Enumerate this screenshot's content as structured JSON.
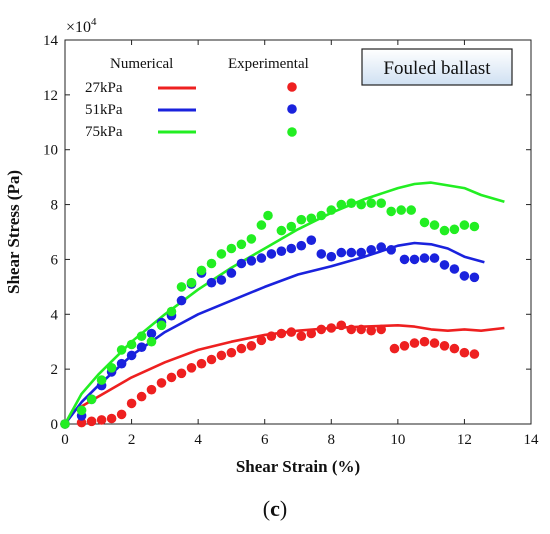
{
  "chart_data": {
    "type": "scatter",
    "xlabel": "Shear Strain (%)",
    "ylabel": "Shear Stress (Pa)",
    "y_multiplier_label": "×10",
    "y_multiplier_exp": "4",
    "xlim": [
      0,
      14
    ],
    "ylim": [
      0,
      140000
    ],
    "x_ticks": [
      "0",
      "2",
      "4",
      "6",
      "8",
      "10",
      "12",
      "14"
    ],
    "y_ticks": [
      "0",
      "2",
      "4",
      "6",
      "8",
      "10",
      "12",
      "14"
    ],
    "grid": false,
    "legend": {
      "placement": "top-left",
      "numerical_header": "Numerical",
      "experimental_header": "Experimental",
      "entries": [
        "27kPa",
        "51kPa",
        "75kPa"
      ]
    },
    "annotation": "Fouled ballast",
    "colors": {
      "27kPa": "#ee2020",
      "51kPa": "#1a22dd",
      "75kPa": "#22ee22"
    },
    "series": [
      {
        "name": "27kPa",
        "numerical": {
          "x": [
            0,
            0.3,
            1,
            2,
            3,
            4,
            5,
            6,
            7,
            8,
            9,
            10,
            10.5,
            11,
            11.5,
            12,
            12.5,
            13.2
          ],
          "y": [
            0,
            5000,
            10000,
            17000,
            22500,
            27000,
            30000,
            32500,
            34000,
            35000,
            35500,
            36000,
            35500,
            34500,
            34000,
            34500,
            34000,
            35000
          ]
        },
        "experimental": {
          "x": [
            0,
            0.5,
            0.8,
            1.1,
            1.4,
            1.7,
            2,
            2.3,
            2.6,
            2.9,
            3.2,
            3.5,
            3.8,
            4.1,
            4.4,
            4.7,
            5,
            5.3,
            5.6,
            5.9,
            6.2,
            6.5,
            6.8,
            7.1,
            7.4,
            7.7,
            8,
            8.3,
            8.6,
            8.9,
            9.2,
            9.5,
            9.9,
            10.2,
            10.5,
            10.8,
            11.1,
            11.4,
            11.7,
            12,
            12.3
          ],
          "y": [
            0,
            500,
            1000,
            1500,
            2000,
            3500,
            7500,
            10000,
            12500,
            15000,
            17000,
            18500,
            20500,
            22000,
            23500,
            25000,
            26000,
            27500,
            28500,
            30500,
            32000,
            33000,
            33500,
            32000,
            33000,
            34500,
            35000,
            36000,
            34500,
            34500,
            34000,
            34500,
            27500,
            28500,
            29500,
            30000,
            29500,
            28500,
            27500,
            26000,
            25500
          ]
        }
      },
      {
        "name": "51kPa",
        "numerical": {
          "x": [
            0,
            0.5,
            1,
            2,
            3,
            4,
            5,
            6,
            7,
            8,
            9,
            10,
            10.5,
            11,
            11.5,
            12,
            12.6
          ],
          "y": [
            0,
            8000,
            14000,
            25000,
            33500,
            40000,
            45000,
            50000,
            54500,
            57500,
            61000,
            65000,
            66000,
            65500,
            64000,
            61000,
            59000
          ]
        },
        "experimental": {
          "x": [
            0,
            0.5,
            0.8,
            1.1,
            1.4,
            1.7,
            2,
            2.3,
            2.6,
            2.9,
            3.2,
            3.5,
            3.8,
            4.1,
            4.4,
            4.7,
            5,
            5.3,
            5.6,
            5.9,
            6.2,
            6.5,
            6.8,
            7.1,
            7.4,
            7.7,
            8,
            8.3,
            8.6,
            8.9,
            9.2,
            9.5,
            9.8,
            10.2,
            10.5,
            10.8,
            11.1,
            11.4,
            11.7,
            12,
            12.3
          ],
          "y": [
            0,
            3000,
            9000,
            14000,
            19000,
            22000,
            25000,
            28000,
            33000,
            37000,
            39500,
            45000,
            51000,
            55000,
            51500,
            52500,
            55000,
            58500,
            59500,
            60500,
            62000,
            63000,
            64000,
            65000,
            67000,
            62000,
            61000,
            62500,
            62500,
            62500,
            63500,
            64500,
            63500,
            60000,
            60000,
            60500,
            60500,
            58000,
            56500,
            54000,
            53500
          ]
        }
      },
      {
        "name": "75kPa",
        "numerical": {
          "x": [
            0,
            0.5,
            1,
            2,
            3,
            4,
            5,
            6,
            7,
            8,
            9,
            10,
            10.5,
            11,
            11.5,
            12,
            12.5,
            13.2
          ],
          "y": [
            0,
            11000,
            18000,
            30000,
            40000,
            49000,
            57000,
            64000,
            71000,
            77000,
            82000,
            86000,
            87500,
            88000,
            87000,
            86000,
            83500,
            81000
          ]
        },
        "experimental": {
          "x": [
            0,
            0.5,
            0.8,
            1.1,
            1.4,
            1.7,
            2,
            2.3,
            2.6,
            2.9,
            3.2,
            3.5,
            3.8,
            4.1,
            4.4,
            4.7,
            5,
            5.3,
            5.6,
            5.9,
            6.1,
            6.5,
            6.8,
            7.1,
            7.4,
            7.7,
            8,
            8.3,
            8.6,
            8.9,
            9.2,
            9.5,
            9.8,
            10.1,
            10.4,
            10.8,
            11.1,
            11.4,
            11.7,
            12,
            12.3
          ],
          "y": [
            0,
            5000,
            9000,
            16000,
            20500,
            27000,
            29000,
            32000,
            30000,
            36000,
            41000,
            50000,
            51500,
            56000,
            58500,
            62000,
            64000,
            65500,
            67500,
            72500,
            76000,
            70500,
            72000,
            74500,
            75000,
            76000,
            78000,
            80000,
            80500,
            80000,
            80500,
            80500,
            77500,
            78000,
            78000,
            73500,
            72500,
            70500,
            71000,
            72500,
            72000
          ]
        }
      }
    ]
  },
  "caption": {
    "open": "(",
    "letter": "c",
    "close": ")"
  }
}
